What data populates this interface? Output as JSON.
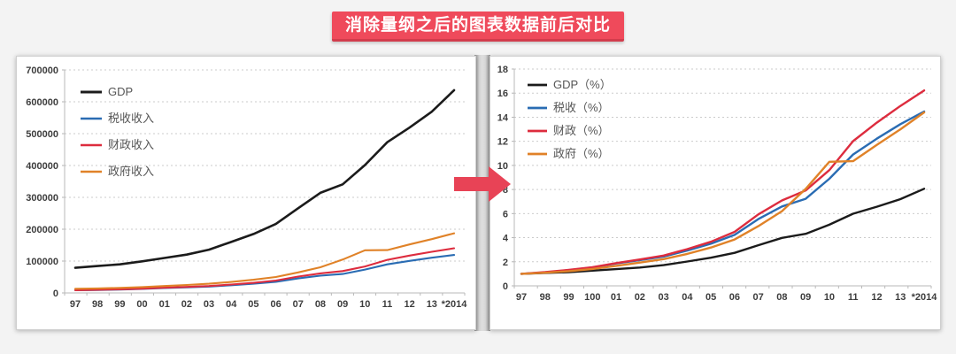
{
  "banner": {
    "text": "消除量纲之后的图表数据前后对比",
    "background": "#ef4a5b",
    "text_color": "#ffffff"
  },
  "arrow": {
    "direction": "right",
    "color": "#e84356"
  },
  "chart_data": [
    {
      "id": "before",
      "type": "line",
      "title": "",
      "xlabel": "",
      "ylabel": "",
      "ylim": [
        0,
        700000
      ],
      "ytick": 100000,
      "ytick_labels": [
        "0",
        "100000",
        "200000",
        "300000",
        "400000",
        "500000",
        "600000",
        "700000"
      ],
      "grid": "horizontal-dashed",
      "legend_position": "upper-left",
      "categories": [
        "97",
        "98",
        "99",
        "00",
        "01",
        "02",
        "03",
        "04",
        "05",
        "06",
        "07",
        "08",
        "09",
        "10",
        "11",
        "12",
        "13",
        "*2014"
      ],
      "series": [
        {
          "id": "gdp",
          "name": "GDP",
          "color": "#1b1b1b",
          "width": 2.6,
          "values": [
            78973,
            84402,
            89677,
            99215,
            109655,
            120333,
            135823,
            159878,
            184937,
            216314,
            265810,
            314045,
            340903,
            401513,
            473104,
            518942,
            568845,
            636463
          ]
        },
        {
          "id": "shuishou",
          "name": "税收收入",
          "color": "#2a6cb3",
          "width": 2.1,
          "values": [
            8234,
            9263,
            10683,
            12582,
            15301,
            17636,
            20017,
            24166,
            28779,
            34804,
            45622,
            54224,
            59522,
            73211,
            89738,
            100614,
            110531,
            119175
          ]
        },
        {
          "id": "caizheng",
          "name": "财政收入",
          "color": "#dd2c3e",
          "width": 2.1,
          "values": [
            8651,
            9876,
            11444,
            13395,
            16386,
            18904,
            21715,
            26396,
            31649,
            38760,
            51322,
            61330,
            68518,
            83102,
            103874,
            117254,
            129210,
            140350
          ]
        },
        {
          "id": "zhengfu",
          "name": "政府收入",
          "color": "#e08228",
          "width": 2.1,
          "values": [
            13000,
            14170,
            15860,
            18200,
            21580,
            25090,
            28860,
            34450,
            41340,
            50050,
            64350,
            80600,
            104650,
            133900,
            134550,
            152100,
            169000,
            187200
          ]
        }
      ]
    },
    {
      "id": "after",
      "type": "line",
      "title": "",
      "xlabel": "",
      "ylabel": "",
      "ylim": [
        0,
        18
      ],
      "ytick": 2,
      "ytick_labels": [
        "0",
        "2",
        "4",
        "6",
        "8",
        "10",
        "12",
        "14",
        "16",
        "18"
      ],
      "grid": "horizontal-dashed",
      "legend_position": "upper-left",
      "categories": [
        "97",
        "98",
        "99",
        "100",
        "01",
        "02",
        "03",
        "04",
        "05",
        "06",
        "07",
        "08",
        "09",
        "10",
        "11",
        "12",
        "13",
        "*2014"
      ],
      "series": [
        {
          "id": "gdp-pct",
          "name": "GDP（%）",
          "color": "#1b1b1b",
          "width": 2.4,
          "values": [
            1.0,
            1.07,
            1.14,
            1.26,
            1.39,
            1.52,
            1.72,
            2.02,
            2.34,
            2.74,
            3.37,
            3.98,
            4.32,
            5.08,
            5.99,
            6.57,
            7.2,
            8.06
          ]
        },
        {
          "id": "shuishou-pct",
          "name": "税收（%）",
          "color": "#2a6cb3",
          "width": 2.4,
          "values": [
            1.0,
            1.12,
            1.3,
            1.53,
            1.86,
            2.14,
            2.43,
            2.93,
            3.5,
            4.23,
            5.54,
            6.59,
            7.23,
            8.89,
            10.9,
            12.22,
            13.42,
            14.47
          ]
        },
        {
          "id": "caizheng-pct",
          "name": "财政（%）",
          "color": "#dd2c3e",
          "width": 2.4,
          "values": [
            1.0,
            1.14,
            1.32,
            1.55,
            1.89,
            2.19,
            2.51,
            3.05,
            3.66,
            4.48,
            5.93,
            7.09,
            7.92,
            9.61,
            12.01,
            13.55,
            14.94,
            16.22
          ]
        },
        {
          "id": "zhengfu-pct",
          "name": "政府（%）",
          "color": "#e08228",
          "width": 2.4,
          "values": [
            1.0,
            1.09,
            1.22,
            1.4,
            1.66,
            1.93,
            2.22,
            2.65,
            3.18,
            3.85,
            4.95,
            6.2,
            8.05,
            10.3,
            10.35,
            11.7,
            13.0,
            14.4
          ]
        }
      ]
    }
  ]
}
